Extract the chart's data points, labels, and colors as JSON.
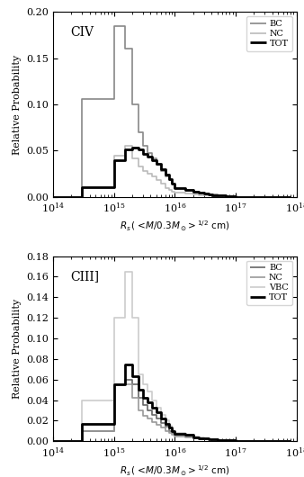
{
  "panel1": {
    "label": "CIV",
    "ylim": [
      0,
      0.2
    ],
    "yticks": [
      0.0,
      0.05,
      0.1,
      0.15,
      0.2
    ],
    "legend_entries": [
      "BC",
      "NC",
      "TOT"
    ],
    "BC_color": "#888888",
    "NC_color": "#bbbbbb",
    "TOT_color": "#000000",
    "BC_lw": 1.2,
    "NC_lw": 1.2,
    "TOT_lw": 2.0
  },
  "panel2": {
    "label": "CIII]",
    "ylim": [
      0,
      0.18
    ],
    "yticks": [
      0.0,
      0.02,
      0.04,
      0.06,
      0.08,
      0.1,
      0.12,
      0.14,
      0.16,
      0.18
    ],
    "legend_entries": [
      "BC",
      "NC",
      "VBC",
      "TOT"
    ],
    "BC_color": "#666666",
    "NC_color": "#999999",
    "VBC_color": "#cccccc",
    "TOT_color": "#000000",
    "BC_lw": 1.2,
    "NC_lw": 1.2,
    "VBC_lw": 1.2,
    "TOT_lw": 2.0
  },
  "xlim": [
    100000000000000.0,
    1e+18
  ],
  "ylabel": "Relative Probability",
  "bins_log": [
    -0.3,
    0.0,
    0.176,
    0.301,
    0.398,
    0.477,
    0.556,
    0.623,
    0.699,
    0.778,
    0.845,
    0.903,
    0.954,
    1.0,
    1.176,
    1.301,
    1.398,
    1.477,
    1.556,
    1.623,
    1.699,
    1.778,
    1.845,
    1.903,
    1.954,
    2.0,
    2.176,
    2.301,
    2.398,
    2.477,
    2.556,
    2.623,
    2.699,
    2.778,
    2.845,
    2.903,
    2.954,
    3.0,
    3.176,
    3.301,
    3.398,
    3.477,
    3.556,
    3.623,
    3.699,
    3.778,
    3.845,
    3.903
  ],
  "p1_BC": [
    0,
    0,
    0,
    0,
    0,
    0.106,
    0.106,
    0.106,
    0.106,
    0.106,
    0.106,
    0.106,
    0.106,
    0.185,
    0.16,
    0.1,
    0.07,
    0.055,
    0.048,
    0.042,
    0.035,
    0.028,
    0.022,
    0.018,
    0.014,
    0.01,
    0.008,
    0.006,
    0.005,
    0.004,
    0.003,
    0.003,
    0.002,
    0.002,
    0.001,
    0.001,
    0.001,
    0.0,
    0.0,
    0.0,
    0.0,
    0.0,
    0.0,
    0.0,
    0.0,
    0.0,
    0.0
  ],
  "p1_NC": [
    0,
    0,
    0,
    0,
    0,
    0.011,
    0.011,
    0.011,
    0.011,
    0.011,
    0.011,
    0.011,
    0.011,
    0.045,
    0.055,
    0.042,
    0.033,
    0.028,
    0.025,
    0.022,
    0.018,
    0.014,
    0.01,
    0.008,
    0.006,
    0.005,
    0.004,
    0.003,
    0.002,
    0.002,
    0.002,
    0.001,
    0.001,
    0.001,
    0.001,
    0.001,
    0.001,
    0.0,
    0.0,
    0.0,
    0.0,
    0.0,
    0.0,
    0.0,
    0.0,
    0.0,
    0.0
  ],
  "p1_TOT": [
    0,
    0,
    0,
    0,
    0,
    0.011,
    0.011,
    0.011,
    0.011,
    0.011,
    0.011,
    0.011,
    0.011,
    0.04,
    0.051,
    0.053,
    0.051,
    0.047,
    0.044,
    0.04,
    0.036,
    0.03,
    0.024,
    0.019,
    0.014,
    0.01,
    0.008,
    0.006,
    0.005,
    0.004,
    0.003,
    0.002,
    0.002,
    0.002,
    0.001,
    0.001,
    0.001,
    0.0,
    0.0,
    0.0,
    0.0,
    0.0,
    0.0,
    0.0,
    0.0,
    0.0,
    0.0
  ],
  "p2_BC": [
    0,
    0,
    0,
    0,
    0,
    0.01,
    0.01,
    0.01,
    0.01,
    0.01,
    0.01,
    0.01,
    0.01,
    0.055,
    0.06,
    0.055,
    0.042,
    0.035,
    0.03,
    0.026,
    0.022,
    0.018,
    0.014,
    0.01,
    0.008,
    0.006,
    0.005,
    0.004,
    0.003,
    0.003,
    0.002,
    0.002,
    0.001,
    0.001,
    0.001,
    0.001,
    0.001,
    0.0,
    0.0,
    0.0,
    0.0,
    0.0,
    0.0,
    0.0,
    0.0,
    0.0,
    0.0
  ],
  "p2_NC": [
    0,
    0,
    0,
    0,
    0,
    0.01,
    0.01,
    0.01,
    0.01,
    0.01,
    0.01,
    0.01,
    0.01,
    0.055,
    0.055,
    0.042,
    0.03,
    0.025,
    0.022,
    0.019,
    0.016,
    0.013,
    0.01,
    0.008,
    0.006,
    0.005,
    0.004,
    0.003,
    0.002,
    0.002,
    0.002,
    0.001,
    0.001,
    0.001,
    0.001,
    0.001,
    0.0,
    0.0,
    0.0,
    0.0,
    0.0,
    0.0,
    0.0,
    0.0,
    0.0,
    0.0,
    0.0
  ],
  "p2_VBC": [
    0,
    0,
    0,
    0,
    0,
    0.04,
    0.04,
    0.04,
    0.04,
    0.04,
    0.04,
    0.04,
    0.04,
    0.12,
    0.165,
    0.12,
    0.065,
    0.055,
    0.048,
    0.04,
    0.033,
    0.026,
    0.02,
    0.015,
    0.011,
    0.008,
    0.006,
    0.005,
    0.004,
    0.003,
    0.002,
    0.002,
    0.001,
    0.001,
    0.001,
    0.001,
    0.001,
    0.0,
    0.0,
    0.0,
    0.0,
    0.0,
    0.0,
    0.0,
    0.0,
    0.0,
    0.0
  ],
  "p2_TOT": [
    0,
    0,
    0,
    0,
    0,
    0.017,
    0.017,
    0.017,
    0.017,
    0.017,
    0.017,
    0.017,
    0.017,
    0.055,
    0.075,
    0.063,
    0.05,
    0.042,
    0.038,
    0.033,
    0.028,
    0.022,
    0.017,
    0.013,
    0.01,
    0.007,
    0.006,
    0.004,
    0.003,
    0.003,
    0.002,
    0.002,
    0.001,
    0.001,
    0.001,
    0.001,
    0.001,
    0.0,
    0.0,
    0.0,
    0.0,
    0.0,
    0.0,
    0.0,
    0.0,
    0.0,
    0.0
  ]
}
